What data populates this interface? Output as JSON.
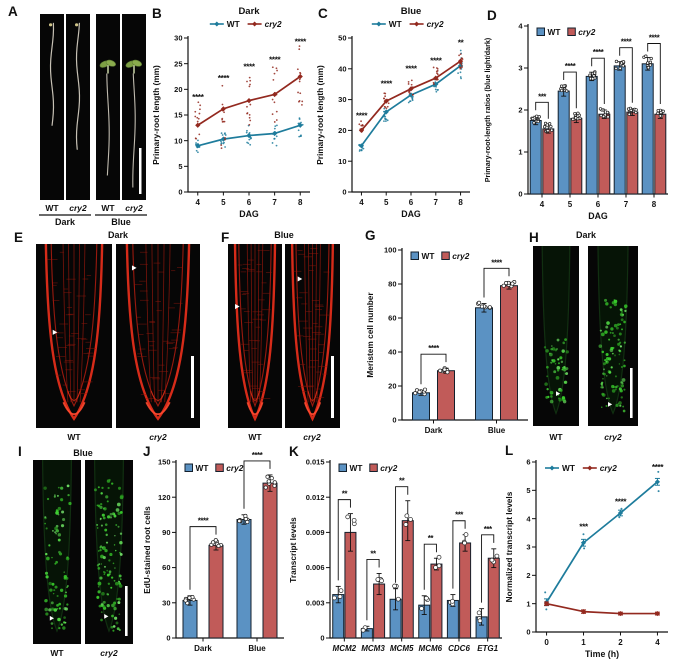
{
  "panel_letters": {
    "A": "A",
    "B": "B",
    "C": "C",
    "D": "D",
    "E": "E",
    "F": "F",
    "G": "G",
    "H": "H",
    "I": "I",
    "J": "J",
    "K": "K",
    "L": "L"
  },
  "colors": {
    "wt_line": "#1e7c9c",
    "cry2_line": "#93291f",
    "wt_bar": "#5b92c3",
    "cry2_bar": "#c15b59",
    "bar_border": "#14202c",
    "axis": "#111111",
    "confocal_red": "#e22d1a",
    "edu_green": "#4fbf4a",
    "panel_black": "#060606",
    "background": "#ffffff"
  },
  "micro_panels": {
    "A": {
      "groups": [
        {
          "title": "Dark",
          "lanes": [
            "WT",
            "cry2"
          ]
        },
        {
          "title": "Blue",
          "lanes": [
            "WT",
            "cry2"
          ]
        }
      ]
    },
    "E": {
      "title": "Dark",
      "lanes": [
        "WT",
        "cry2"
      ]
    },
    "F": {
      "title": "Blue",
      "lanes": [
        "WT",
        "cry2"
      ]
    },
    "H": {
      "title": "Dark",
      "lanes": [
        "WT",
        "cry2"
      ]
    },
    "I": {
      "title": "Blue",
      "lanes": [
        "WT",
        "cry2"
      ]
    }
  },
  "chart_data": [
    {
      "panel": "B",
      "type": "line",
      "title": "Dark",
      "xlabel": "DAG",
      "ylabel": "Primary-root length (mm)",
      "x": [
        4,
        5,
        6,
        7,
        8
      ],
      "ylim": [
        0,
        30
      ],
      "yticks": [
        0,
        5,
        10,
        15,
        20,
        25,
        30
      ],
      "n_rep": 13,
      "series": [
        {
          "name": "WT",
          "color": "#1e7c9c",
          "values": [
            9,
            10.3,
            11,
            11.4,
            13
          ],
          "spread": [
            [
              7.5,
              10.5
            ],
            [
              8.5,
              12
            ],
            [
              9,
              13
            ],
            [
              9,
              13.5
            ],
            [
              10.5,
              14.5
            ]
          ]
        },
        {
          "name": "cry2",
          "italic": true,
          "color": "#93291f",
          "values": [
            13,
            16.2,
            17.8,
            19,
            22.5
          ],
          "spread": [
            [
              10,
              17.5
            ],
            [
              8.5,
              21
            ],
            [
              13,
              23.5
            ],
            [
              13,
              24.5
            ],
            [
              16,
              28.5
            ]
          ]
        }
      ],
      "sig": [
        "****",
        "****",
        "****",
        "****",
        "****"
      ],
      "sig_y": [
        17.9,
        21.6,
        23.9,
        25.2,
        28.7
      ]
    },
    {
      "panel": "C",
      "type": "line",
      "title": "Blue",
      "xlabel": "DAG",
      "ylabel": "Primary-root length (mm)",
      "x": [
        4,
        5,
        6,
        7,
        8
      ],
      "ylim": [
        0,
        50
      ],
      "yticks": [
        0,
        10,
        20,
        30,
        40,
        50
      ],
      "n_rep": 12,
      "series": [
        {
          "name": "WT",
          "color": "#1e7c9c",
          "values": [
            15,
            26,
            31.5,
            35,
            41
          ],
          "spread": [
            [
              13,
              16
            ],
            [
              23,
              28
            ],
            [
              28.5,
              33.5
            ],
            [
              32.5,
              37
            ],
            [
              36.5,
              46
            ]
          ]
        },
        {
          "name": "cry2",
          "italic": true,
          "color": "#93291f",
          "values": [
            20,
            29.5,
            33.5,
            37,
            42.5
          ],
          "spread": [
            [
              18,
              23
            ],
            [
              27,
              32.5
            ],
            [
              31,
              38
            ],
            [
              35,
              40.5
            ],
            [
              40,
              45.5
            ]
          ]
        }
      ],
      "sig": [
        "****",
        "****",
        "****",
        "****",
        "**"
      ],
      "sig_y": [
        23.8,
        34.2,
        39.2,
        41.8,
        47.6
      ]
    },
    {
      "panel": "D",
      "type": "bar",
      "xlabel": "DAG",
      "ylabel": "Primary-root-length ratios (blue light/dark)",
      "categories": [
        "4",
        "5",
        "6",
        "7",
        "8"
      ],
      "ylim": [
        0,
        4
      ],
      "yticks": [
        0,
        1,
        2,
        3,
        4
      ],
      "series": [
        {
          "name": "WT",
          "color": "#5b92c3",
          "values": [
            1.75,
            2.45,
            2.8,
            3.05,
            3.1
          ],
          "err": [
            0.1,
            0.12,
            0.1,
            0.1,
            0.15
          ]
        },
        {
          "name": "cry2",
          "italic": true,
          "color": "#c15b59",
          "values": [
            1.55,
            1.8,
            1.9,
            1.95,
            1.9
          ],
          "err": [
            0.1,
            0.1,
            0.1,
            0.08,
            0.1
          ]
        }
      ],
      "sig": [
        "***",
        "****",
        "****",
        "****",
        "****"
      ]
    },
    {
      "panel": "G",
      "type": "bar",
      "ylabel": "Meristem cell number",
      "categories": [
        "Dark",
        "Blue"
      ],
      "ylim": [
        0,
        100
      ],
      "yticks": [
        0,
        20,
        40,
        60,
        80,
        100
      ],
      "series": [
        {
          "name": "WT",
          "color": "#5b92c3",
          "values": [
            16,
            66
          ],
          "err": [
            1.5,
            2.5
          ]
        },
        {
          "name": "cry2",
          "italic": true,
          "color": "#c15b59",
          "values": [
            29,
            79
          ],
          "err": [
            1.5,
            2
          ]
        }
      ],
      "sig": [
        "****",
        "****"
      ]
    },
    {
      "panel": "J",
      "type": "bar",
      "ylabel": "EdU-stained root cells",
      "categories": [
        "Dark",
        "Blue"
      ],
      "ylim": [
        0,
        150
      ],
      "yticks": [
        0,
        30,
        60,
        90,
        120,
        150
      ],
      "series": [
        {
          "name": "WT",
          "color": "#5b92c3",
          "values": [
            32,
            101
          ],
          "err": [
            4,
            4
          ]
        },
        {
          "name": "cry2",
          "italic": true,
          "color": "#c15b59",
          "values": [
            79,
            132
          ],
          "err": [
            4,
            7
          ]
        }
      ],
      "sig": [
        "****",
        "****"
      ]
    },
    {
      "panel": "K",
      "type": "bar",
      "ylabel": "Transcript levels",
      "categories_italic": true,
      "categories": [
        "MCM2",
        "MCM3",
        "MCM5",
        "MCM6",
        "CDC6",
        "ETG1"
      ],
      "ylim": [
        0,
        0.015
      ],
      "yticks": [
        0,
        0.003,
        0.006,
        0.009,
        0.012,
        0.015
      ],
      "ytick_labels": [
        "0",
        "0.003",
        "0.006",
        "0.009",
        "0.012",
        "0.015"
      ],
      "series": [
        {
          "name": "WT",
          "color": "#5b92c3",
          "values": [
            0.0037,
            0.0008,
            0.0033,
            0.0028,
            0.0032,
            0.0018
          ],
          "err": [
            0.0007,
            0.0002,
            0.0009,
            0.0008,
            0.0005,
            0.0007
          ]
        },
        {
          "name": "cry2",
          "italic": true,
          "color": "#c15b59",
          "values": [
            0.009,
            0.0046,
            0.01,
            0.0063,
            0.0081,
            0.0068
          ],
          "err": [
            0.0016,
            0.0009,
            0.0017,
            0.0005,
            0.0007,
            0.0008
          ]
        }
      ],
      "sig": [
        "**",
        "**",
        "**",
        "**",
        "***",
        "***"
      ]
    },
    {
      "panel": "L",
      "type": "line",
      "xlabel": "Time (h)",
      "ylabel": "Normalized transcript levels",
      "x": [
        0,
        1,
        2,
        4
      ],
      "ylim": [
        0,
        6
      ],
      "yticks": [
        0,
        1,
        2,
        3,
        4,
        5,
        6
      ],
      "n_rep": 2,
      "series": [
        {
          "name": "WT",
          "color": "#1e7c9c",
          "values": [
            1.05,
            3.15,
            4.2,
            5.3
          ],
          "err": [
            0.12,
            0.12,
            0.1,
            0.12
          ],
          "spread": [
            [
              0.8,
              1.4
            ],
            [
              2.95,
              3.45
            ],
            [
              4.05,
              4.35
            ],
            [
              4.97,
              5.65
            ]
          ]
        },
        {
          "name": "cry2",
          "italic": true,
          "color": "#93291f",
          "values": [
            1.0,
            0.72,
            0.65,
            0.65
          ],
          "err": [
            0.06,
            0.06,
            0.05,
            0.05
          ],
          "spread": [
            [
              0.95,
              1.05
            ],
            [
              0.68,
              0.76
            ],
            [
              0.62,
              0.68
            ],
            [
              0.62,
              0.68
            ]
          ]
        }
      ],
      "sig": [
        "",
        "***",
        "****",
        "****"
      ],
      "sig_y": [
        0,
        3.62,
        4.5,
        5.72
      ]
    }
  ]
}
